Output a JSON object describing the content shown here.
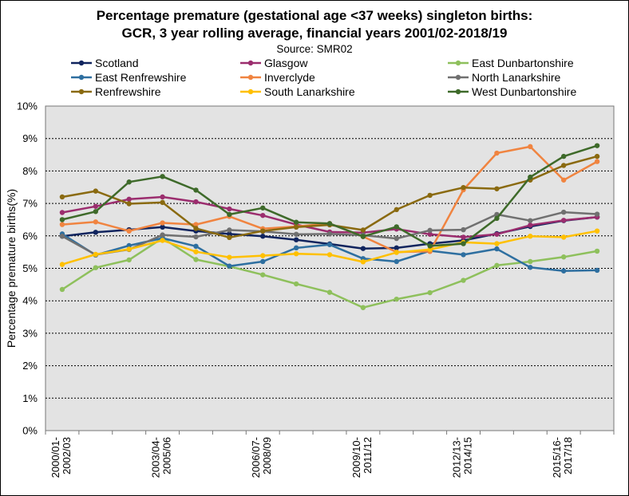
{
  "chart_data": {
    "type": "line",
    "title_line1": "Percentage premature (gestational age <37 weeks) singleton births:",
    "title_line2": "GCR, 3 year rolling average, financial years 2001/02-2018/19",
    "subtitle": "Source: SMR02",
    "xlabel": "",
    "ylabel": "Percentage premature births(%)",
    "ylim": [
      0,
      10
    ],
    "yticks": [
      "0%",
      "1%",
      "2%",
      "3%",
      "4%",
      "5%",
      "6%",
      "7%",
      "8%",
      "9%",
      "10%"
    ],
    "grid": true,
    "legend_position": "top",
    "categories": [
      "2000/01-2002/03",
      "2001/02-2003/04",
      "2002/03-2004/05",
      "2003/04-2005/06",
      "2004/05-2006/07",
      "2005/06-2007/08",
      "2006/07-2008/09",
      "2007/08-2009/10",
      "2008/09-2010/11",
      "2009/10-2011/12",
      "2010/11-2012/13",
      "2011/12-2013/14",
      "2012/13-2014/15",
      "2013/14-2015/16",
      "2014/15-2016/17",
      "2015/16-2017/18",
      "2016/17-2018/19"
    ],
    "tick_labels": [
      {
        "index": 0,
        "line1": "2000/01-",
        "line2": "2002/03"
      },
      {
        "index": 3,
        "line1": "2003/04-",
        "line2": "2005/06"
      },
      {
        "index": 6,
        "line1": "2006/07-",
        "line2": "2008/09"
      },
      {
        "index": 9,
        "line1": "2009/10-",
        "line2": "2011/12"
      },
      {
        "index": 12,
        "line1": "2012/13-",
        "line2": "2014/15"
      },
      {
        "index": 15,
        "line1": "2015/16-",
        "line2": "2017/18"
      }
    ],
    "series": [
      {
        "name": "Scotland",
        "color": "#10245e",
        "values": [
          5.99,
          6.11,
          6.19,
          6.27,
          6.15,
          6.06,
          5.99,
          5.88,
          5.75,
          5.61,
          5.63,
          5.76,
          5.86,
          6.07,
          6.29,
          6.47,
          6.58
        ]
      },
      {
        "name": "Glasgow",
        "color": "#9b2d6e",
        "values": [
          6.72,
          6.91,
          7.13,
          7.2,
          7.05,
          6.83,
          6.63,
          6.35,
          6.12,
          6.1,
          6.21,
          6.05,
          5.96,
          6.05,
          6.33,
          6.48,
          6.58
        ]
      },
      {
        "name": "East Dunbartonshire",
        "color": "#8ec05c",
        "values": [
          4.35,
          5.02,
          5.26,
          5.93,
          5.27,
          5.06,
          4.8,
          4.52,
          4.26,
          3.79,
          4.05,
          4.25,
          4.63,
          5.09,
          5.21,
          5.35,
          5.53
        ]
      },
      {
        "name": "East Renfrewshire",
        "color": "#2e6fa0",
        "values": [
          6.06,
          5.41,
          5.7,
          5.93,
          5.68,
          5.07,
          5.21,
          5.63,
          5.73,
          5.3,
          5.21,
          5.54,
          5.42,
          5.6,
          5.03,
          4.92,
          4.94
        ]
      },
      {
        "name": "Inverclyde",
        "color": "#f08440",
        "values": [
          6.35,
          6.43,
          6.15,
          6.4,
          6.35,
          6.6,
          6.22,
          6.29,
          6.38,
          5.98,
          5.5,
          5.52,
          7.42,
          8.55,
          8.75,
          7.72,
          8.29
        ]
      },
      {
        "name": "North Lanarkshire",
        "color": "#707070",
        "values": [
          5.99,
          5.42,
          5.58,
          6.03,
          5.97,
          6.18,
          6.14,
          6.05,
          6.06,
          6.02,
          5.92,
          6.17,
          6.19,
          6.66,
          6.47,
          6.73,
          6.67
        ]
      },
      {
        "name": "Renfrewshire",
        "color": "#8a6a10",
        "values": [
          7.2,
          7.38,
          6.99,
          7.03,
          6.23,
          5.95,
          6.15,
          6.27,
          6.34,
          6.18,
          6.81,
          7.25,
          7.49,
          7.45,
          7.72,
          8.17,
          8.45
        ]
      },
      {
        "name": "South Lanarkshire",
        "color": "#ffc000",
        "values": [
          5.12,
          5.43,
          5.59,
          5.86,
          5.51,
          5.34,
          5.39,
          5.45,
          5.42,
          5.2,
          5.49,
          5.58,
          5.8,
          5.76,
          5.99,
          5.96,
          6.15
        ]
      },
      {
        "name": "West Dunbartonshire",
        "color": "#3e6a2a",
        "values": [
          6.5,
          6.75,
          7.66,
          7.83,
          7.41,
          6.66,
          6.86,
          6.42,
          6.38,
          5.98,
          6.28,
          5.69,
          5.76,
          6.54,
          7.81,
          8.45,
          8.78
        ]
      }
    ]
  }
}
